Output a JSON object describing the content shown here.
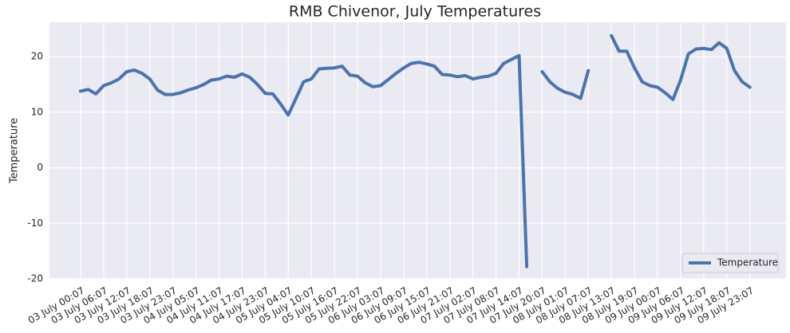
{
  "chart_data": {
    "type": "line",
    "title": "RMB Chivenor, July Temperatures",
    "y_label": "Temperature",
    "categories": [
      "03 July 00:07",
      null,
      null,
      "03 July 06:07",
      null,
      null,
      "03 July 12:07",
      null,
      null,
      "03 July 18:07",
      null,
      null,
      "03 July 23:07",
      null,
      null,
      "04 July 05:07",
      null,
      null,
      "04 July 11:07",
      null,
      null,
      "04 July 17:07",
      null,
      null,
      "04 July 23:07",
      null,
      null,
      "05 July 04:07",
      null,
      null,
      "05 July 10:07",
      null,
      null,
      "05 July 16:07",
      null,
      null,
      "05 July 22:07",
      null,
      null,
      "06 July 03:07",
      null,
      null,
      "06 July 09:07",
      null,
      null,
      "06 July 15:07",
      null,
      null,
      "06 July 21:07",
      null,
      null,
      "07 July 02:07",
      null,
      null,
      "07 July 08:07",
      null,
      null,
      "07 July 14:07",
      null,
      null,
      "07 July 20:07",
      null,
      null,
      "08 July 01:07",
      null,
      null,
      "08 July 07:07",
      null,
      null,
      "08 July 13:07",
      null,
      null,
      "08 July 19:07",
      null,
      null,
      "09 July 00:07",
      null,
      null,
      "09 July 06:07",
      null,
      null,
      "09 July 12:07",
      null,
      null,
      "09 July 18:07",
      null,
      null,
      "09 July 23:07"
    ],
    "series": [
      {
        "name": "Temperature",
        "color": "#4c72b0",
        "values": [
          13.8,
          14.1,
          13.3,
          14.8,
          15.3,
          16.0,
          17.3,
          17.6,
          17.0,
          16.0,
          14.0,
          13.2,
          13.2,
          13.5,
          14.0,
          14.4,
          15.0,
          15.8,
          16.0,
          16.5,
          16.3,
          16.9,
          16.3,
          15.0,
          13.4,
          13.3,
          11.5,
          9.5,
          12.5,
          15.5,
          16.0,
          17.8,
          17.9,
          18.0,
          18.3,
          16.7,
          16.5,
          15.3,
          14.6,
          14.8,
          15.9,
          17.0,
          18.0,
          18.8,
          19.0,
          18.7,
          18.3,
          16.8,
          16.7,
          16.4,
          16.6,
          16.0,
          16.3,
          16.5,
          17.0,
          18.8,
          19.5,
          20.2,
          -17.8,
          null,
          17.3,
          15.5,
          14.3,
          13.6,
          13.2,
          12.5,
          17.5,
          null,
          null,
          23.8,
          21.0,
          21.0,
          18.0,
          15.5,
          14.8,
          14.5,
          13.5,
          12.3,
          15.8,
          20.5,
          21.4,
          21.5,
          21.3,
          22.5,
          21.5,
          17.5,
          15.5,
          14.5
        ]
      }
    ],
    "xlim": [
      -4.04,
      91.7
    ],
    "ylim": [
      -20,
      26.2
    ],
    "yticks": [
      -20,
      -10,
      0,
      10,
      20
    ],
    "grid": true,
    "legend": "lower right"
  }
}
